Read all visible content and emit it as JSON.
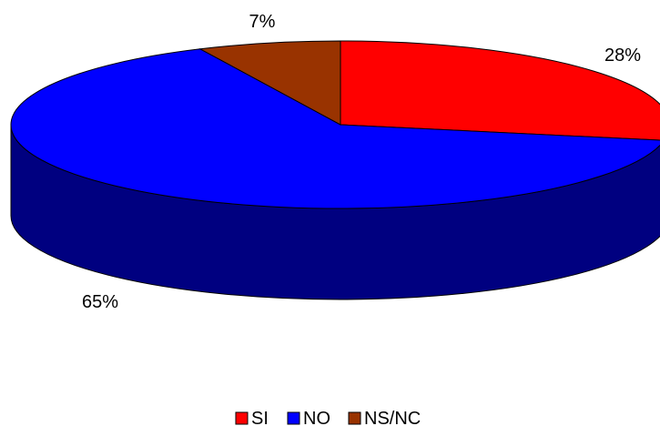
{
  "chart_data": {
    "type": "pie",
    "style": "3d",
    "title": "",
    "categories": [
      "SI",
      "NO",
      "NS/NC"
    ],
    "values": [
      28,
      65,
      7
    ],
    "labels": [
      "28%",
      "65%",
      "7%"
    ],
    "colors": {
      "SI": "#FF0000",
      "NO": "#0000FF",
      "NS/NC": "#993300"
    },
    "side_color": "#000080",
    "legend": {
      "placement": "bottom",
      "entries": [
        "SI",
        "NO",
        "NS/NC"
      ]
    }
  }
}
